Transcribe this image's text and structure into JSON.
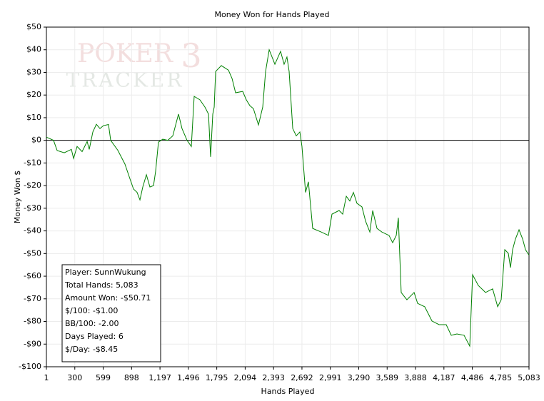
{
  "chart_data": {
    "type": "line",
    "title": "Money Won for Hands Played",
    "x_label": "Hands Played",
    "y_label": "Money Won $",
    "watermark": [
      "POKER",
      "3",
      "TRACKER"
    ],
    "stats": [
      "Player: SunnWukung",
      "Total Hands: 5,083",
      "Amount Won: -$50.71",
      "$/100: -$1.00",
      "BB/100: -2.00",
      "Days Played: 6",
      "$/Day: -$8.45"
    ],
    "grid": true,
    "xlim": [
      1,
      5083
    ],
    "ylim": [
      -100,
      50
    ],
    "xticks": [
      1,
      300,
      599,
      898,
      {
        "value": 1197,
        "label": "1,197"
      },
      {
        "value": 1496,
        "label": "1,496"
      },
      {
        "value": 1795,
        "label": "1,795"
      },
      {
        "value": 2094,
        "label": "2,094"
      },
      {
        "value": 2393,
        "label": "2,393"
      },
      {
        "value": 2692,
        "label": "2,692"
      },
      {
        "value": 2991,
        "label": "2,991"
      },
      {
        "value": 3290,
        "label": "3,290"
      },
      {
        "value": 3589,
        "label": "3,589"
      },
      {
        "value": 3888,
        "label": "3,888"
      },
      {
        "value": 4187,
        "label": "4,187"
      },
      {
        "value": 4486,
        "label": "4,486"
      },
      {
        "value": 4785,
        "label": "4,785"
      },
      {
        "value": 5083,
        "label": "5,083"
      }
    ],
    "yticks": [
      {
        "value": 50,
        "label": "$50"
      },
      {
        "value": 40,
        "label": "$40"
      },
      {
        "value": 30,
        "label": "$30"
      },
      {
        "value": 20,
        "label": "$20"
      },
      {
        "value": 10,
        "label": "$10"
      },
      {
        "value": 0,
        "label": "$0"
      },
      {
        "value": -10,
        "label": "-$10"
      },
      {
        "value": -20,
        "label": "-$20"
      },
      {
        "value": -30,
        "label": "-$30"
      },
      {
        "value": -40,
        "label": "-$40"
      },
      {
        "value": -50,
        "label": "-$50"
      },
      {
        "value": -60,
        "label": "-$60"
      },
      {
        "value": -70,
        "label": "-$70"
      },
      {
        "value": -80,
        "label": "-$80"
      },
      {
        "value": -90,
        "label": "-$90"
      },
      {
        "value": -100,
        "label": "-$100"
      }
    ],
    "series": [
      {
        "name": "Money Won",
        "color": "#008000",
        "x": [
          1,
          76,
          114,
          189,
          264,
          287,
          324,
          377,
          430,
          452,
          490,
          527,
          565,
          602,
          655,
          678,
          753,
          828,
          866,
          918,
          956,
          986,
          1016,
          1054,
          1091,
          1129,
          1151,
          1181,
          1226,
          1279,
          1332,
          1392,
          1429,
          1482,
          1527,
          1557,
          1617,
          1670,
          1708,
          1730,
          1753,
          1768,
          1783,
          1843,
          1918,
          1956,
          1993,
          2068,
          2106,
          2144,
          2181,
          2234,
          2279,
          2309,
          2347,
          2407,
          2467,
          2504,
          2534,
          2557,
          2595,
          2632,
          2670,
          2692,
          2730,
          2760,
          2805,
          2895,
          2971,
          3008,
          3083,
          3121,
          3159,
          3196,
          3234,
          3271,
          3324,
          3362,
          3407,
          3437,
          3482,
          3534,
          3609,
          3647,
          3685,
          3707,
          3737,
          3797,
          3873,
          3910,
          3985,
          4061,
          4136,
          4211,
          4264,
          4324,
          4399,
          4459,
          4489,
          4549,
          4625,
          4700,
          4753,
          4790,
          4828,
          4865,
          4888,
          4910,
          4940,
          4978,
          5016,
          5046,
          5083
        ],
        "values": [
          1.4,
          0,
          -4.5,
          -5.5,
          -4,
          -8,
          -2.7,
          -5,
          -0.5,
          -4,
          3.7,
          7.1,
          5.2,
          6.5,
          7,
          0,
          -4.4,
          -10.5,
          -15.2,
          -21.5,
          -23,
          -26.3,
          -20.6,
          -15.2,
          -20.6,
          -20,
          -13.7,
          -0.8,
          0.5,
          0,
          2,
          11.6,
          5.2,
          0,
          -2.7,
          19.4,
          17.9,
          14.7,
          11.6,
          -7.3,
          11.6,
          14.7,
          30.4,
          33,
          31,
          27.3,
          21,
          21.6,
          17.9,
          15.3,
          14,
          6.8,
          14.7,
          30.4,
          40,
          33.6,
          39.3,
          33.6,
          36.8,
          30.4,
          5.2,
          2,
          3.7,
          -2.7,
          -23,
          -18.3,
          -38.9,
          -40.5,
          -42,
          -32.6,
          -31,
          -32.6,
          -24.7,
          -26.8,
          -23,
          -27.8,
          -29.4,
          -35.7,
          -40.5,
          -31,
          -38.9,
          -40.5,
          -42,
          -45.2,
          -42,
          -34.2,
          -67.2,
          -70.4,
          -67.2,
          -72,
          -73.5,
          -79.8,
          -81.4,
          -81.4,
          -86.1,
          -85.5,
          -86.1,
          -90.9,
          -59.4,
          -64.1,
          -67.2,
          -65.6,
          -73.5,
          -70.4,
          -48.3,
          -49.9,
          -56.2,
          -48.3,
          -43.6,
          -39.5,
          -43.6,
          -48.3,
          -50.71
        ]
      }
    ]
  }
}
